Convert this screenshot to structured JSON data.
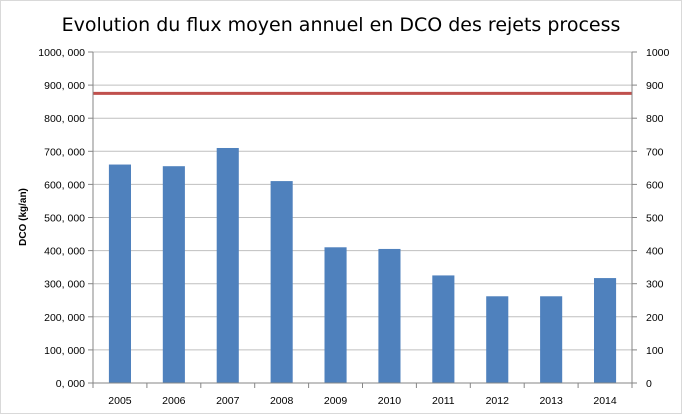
{
  "chart_data": {
    "type": "bar",
    "title": "Evolution du flux moyen annuel en DCO des rejets process",
    "xlabel": "",
    "ylabel": "DCO (kg/an)",
    "categories": [
      "2005",
      "2006",
      "2007",
      "2008",
      "2009",
      "2010",
      "2011",
      "2012",
      "2013",
      "2014"
    ],
    "series": [
      {
        "values": [
          660,
          655,
          710,
          610,
          410,
          405,
          325,
          262,
          262,
          317
        ],
        "color": "#4f81bd"
      }
    ],
    "reference_line": {
      "value": 875,
      "color": "#c0504d"
    },
    "ylim": [
      0,
      1000
    ],
    "y_ticks_left": [
      "0, 000",
      "100, 000",
      "200, 000",
      "300, 000",
      "400, 000",
      "500, 000",
      "600, 000",
      "700, 000",
      "800, 000",
      "900, 000",
      "1000, 000"
    ],
    "y_ticks_right": [
      "0",
      "100",
      "200",
      "300",
      "400",
      "500",
      "600",
      "700",
      "800",
      "900",
      "1000"
    ],
    "grid": true,
    "legend": "none"
  }
}
